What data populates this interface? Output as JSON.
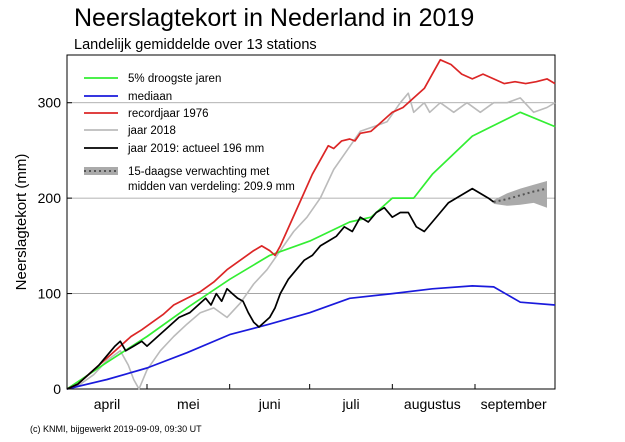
{
  "header": {
    "title": "Neerslagtekort in Nederland in 2019",
    "subtitle": "Landelijk gemiddelde over 13 stations"
  },
  "footer": {
    "credit": "(c) KNMI, bijgewerkt 2019-09-09, 09:30 UT"
  },
  "chart_data": {
    "type": "line",
    "ylabel": "Neerslagtekort (mm)",
    "ylim": [
      0,
      350
    ],
    "xlim": [
      0,
      183
    ],
    "y_ticks": [
      0,
      100,
      200,
      300
    ],
    "months": [
      {
        "label": "april",
        "day": 15
      },
      {
        "label": "mei",
        "day": 45.5
      },
      {
        "label": "juni",
        "day": 76
      },
      {
        "label": "juli",
        "day": 106.5
      },
      {
        "label": "augustus",
        "day": 137
      },
      {
        "label": "september",
        "day": 167.5
      }
    ],
    "legend": {
      "position": "top-left",
      "items": [
        {
          "label": "5% droogste jaren",
          "color": "#33ee33"
        },
        {
          "label": "mediaan",
          "color": "#1a1adc"
        },
        {
          "label": "recordjaar 1976",
          "color": "#dc2626"
        },
        {
          "label": "jaar 2018",
          "color": "#bbbbbb"
        },
        {
          "label": "jaar 2019: actueel 196 mm",
          "color": "#000000"
        },
        {
          "label": "15-daagse verwachting met",
          "label2": "midden van verdeling: 209.9 mm",
          "color": "#888888"
        }
      ]
    },
    "series": [
      {
        "name": "5% droogste jaren",
        "color": "#33ee33",
        "x": [
          0,
          15,
          30,
          45,
          61,
          76,
          91,
          106,
          114,
          122,
          130,
          137,
          152,
          170,
          183
        ],
        "y": [
          0,
          28,
          55,
          85,
          115,
          140,
          155,
          175,
          180,
          200,
          200,
          225,
          265,
          290,
          275
        ]
      },
      {
        "name": "mediaan",
        "color": "#1a1adc",
        "x": [
          0,
          15,
          30,
          45,
          61,
          76,
          91,
          106,
          122,
          137,
          152,
          160,
          170,
          183
        ],
        "y": [
          0,
          10,
          22,
          38,
          57,
          68,
          80,
          95,
          100,
          105,
          108,
          107,
          91,
          88
        ]
      },
      {
        "name": "recordjaar 1976",
        "color": "#dc2626",
        "x": [
          0,
          4,
          8,
          12,
          16,
          20,
          24,
          28,
          32,
          36,
          40,
          45,
          50,
          55,
          60,
          65,
          70,
          73,
          76,
          78,
          80,
          84,
          88,
          92,
          96,
          98,
          100,
          103,
          106,
          108,
          110,
          114,
          118,
          122,
          126,
          130,
          134,
          137,
          140,
          144,
          148,
          152,
          156,
          160,
          164,
          168,
          172,
          176,
          180,
          183
        ],
        "y": [
          0,
          5,
          15,
          25,
          35,
          45,
          55,
          62,
          70,
          78,
          88,
          95,
          102,
          112,
          125,
          135,
          145,
          150,
          145,
          140,
          150,
          175,
          200,
          225,
          245,
          255,
          252,
          260,
          262,
          260,
          268,
          270,
          280,
          290,
          295,
          305,
          315,
          330,
          345,
          340,
          330,
          325,
          330,
          325,
          320,
          322,
          320,
          322,
          325,
          320
        ]
      },
      {
        "name": "jaar 2018",
        "color": "#bbbbbb",
        "x": [
          0,
          5,
          10,
          15,
          20,
          23,
          25,
          27,
          30,
          35,
          40,
          45,
          50,
          55,
          60,
          65,
          70,
          75,
          80,
          85,
          90,
          95,
          100,
          105,
          110,
          115,
          120,
          125,
          128,
          130,
          132,
          134,
          136,
          140,
          145,
          150,
          155,
          160,
          165,
          170,
          175,
          180,
          183
        ],
        "y": [
          0,
          5,
          15,
          30,
          40,
          25,
          10,
          0,
          20,
          40,
          55,
          68,
          80,
          85,
          75,
          90,
          110,
          125,
          145,
          165,
          180,
          200,
          230,
          250,
          270,
          275,
          280,
          300,
          310,
          290,
          295,
          300,
          290,
          300,
          290,
          300,
          290,
          300,
          300,
          305,
          290,
          295,
          300
        ]
      },
      {
        "name": "jaar 2019: actueel 196 mm",
        "color": "#000000",
        "x": [
          0,
          4,
          8,
          12,
          15,
          18,
          20,
          22,
          25,
          28,
          30,
          34,
          38,
          42,
          46,
          50,
          52,
          54,
          56,
          58,
          60,
          62,
          64,
          66,
          68,
          70,
          72,
          74,
          76,
          78,
          80,
          83,
          86,
          89,
          92,
          95,
          98,
          101,
          104,
          107,
          110,
          113,
          116,
          119,
          122,
          125,
          128,
          131,
          134,
          137,
          140,
          143,
          146,
          149,
          152,
          155,
          158,
          160
        ],
        "y": [
          0,
          5,
          15,
          25,
          35,
          45,
          50,
          40,
          45,
          50,
          45,
          55,
          65,
          75,
          80,
          90,
          95,
          88,
          100,
          92,
          105,
          100,
          95,
          92,
          80,
          70,
          65,
          70,
          75,
          85,
          100,
          115,
          125,
          135,
          140,
          150,
          155,
          160,
          170,
          165,
          180,
          175,
          185,
          190,
          180,
          185,
          185,
          170,
          165,
          175,
          185,
          195,
          200,
          205,
          210,
          205,
          200,
          196
        ]
      }
    ],
    "forecast": {
      "color": "#888888",
      "x": [
        160,
        165,
        170,
        175,
        180
      ],
      "mid": [
        196,
        199,
        203,
        207,
        210
      ],
      "low": [
        194,
        192,
        193,
        195,
        190
      ],
      "high": [
        198,
        205,
        210,
        214,
        218
      ]
    }
  }
}
